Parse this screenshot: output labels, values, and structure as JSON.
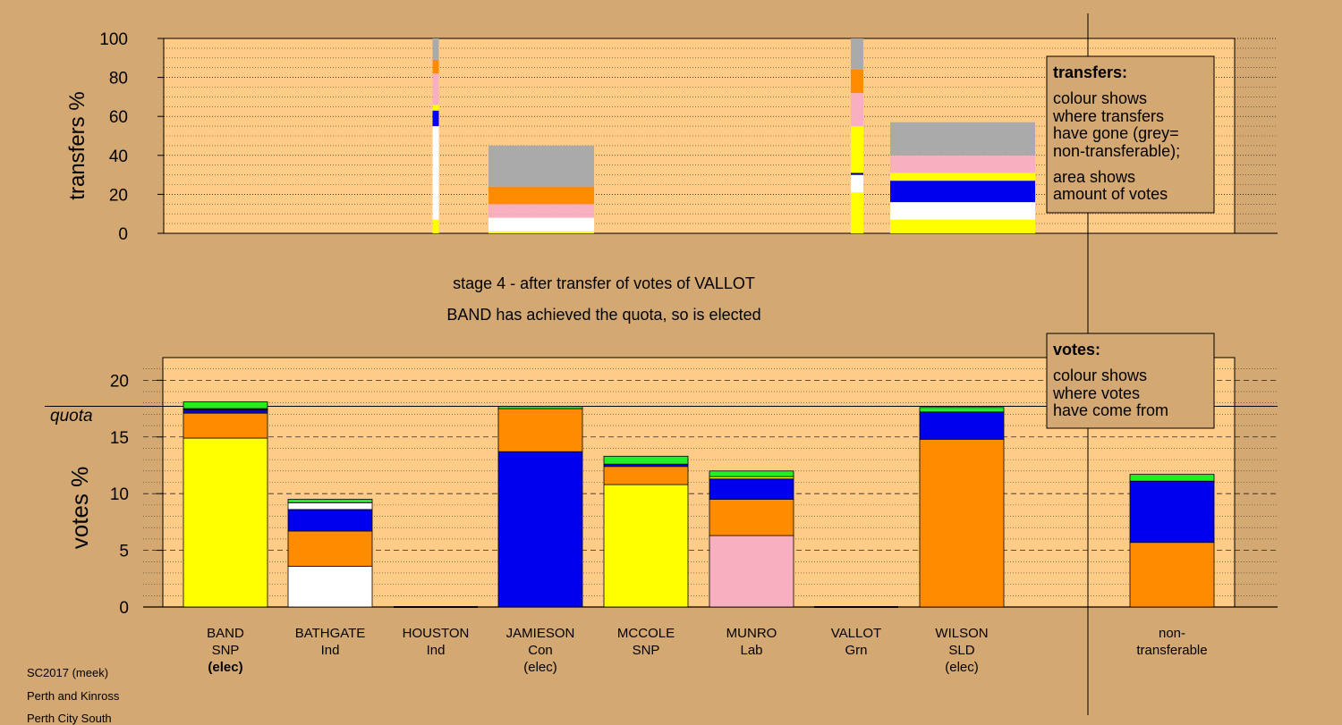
{
  "chart_data": {
    "type": "bar",
    "stage_title": "stage 4 - after transfer of votes of VALLOT",
    "stage_subtitle": "BAND has achieved the quota, so is elected",
    "colors": {
      "yellow": "#ffff00",
      "white": "#ffffff",
      "blue": "#0000ee",
      "orange": "#ff8c00",
      "pink": "#f8b0c0",
      "green": "#22ee22",
      "grey": "#aaaaaa",
      "navy": "#000080",
      "panel": "#ffcc88",
      "background": "#d4a872"
    },
    "transfers": {
      "ylabel": "transfers %",
      "ylim": [
        0,
        100
      ],
      "yticks": [
        0,
        20,
        40,
        60,
        80,
        100
      ],
      "bars": [
        {
          "candidate": "HOUSTON",
          "segments": [
            [
              "yellow",
              7
            ],
            [
              "white",
              48
            ],
            [
              "blue",
              8
            ],
            [
              "yellow",
              3
            ],
            [
              "pink",
              16
            ],
            [
              "orange",
              7
            ],
            [
              "grey",
              11
            ]
          ]
        },
        {
          "candidate": "JAMIESON",
          "segments": [
            [
              "yellow",
              1
            ],
            [
              "white",
              7
            ],
            [
              "pink",
              2
            ],
            [
              "pink",
              5
            ],
            [
              "orange",
              9
            ],
            [
              "grey",
              21
            ]
          ]
        },
        {
          "candidate": "VALLOT",
          "segments": [
            [
              "yellow",
              21
            ],
            [
              "white",
              9
            ],
            [
              "navy",
              1
            ],
            [
              "yellow",
              24
            ],
            [
              "pink",
              17
            ],
            [
              "orange",
              12
            ],
            [
              "grey",
              16
            ]
          ]
        },
        {
          "candidate": "WILSON",
          "segments": [
            [
              "yellow",
              7
            ],
            [
              "white",
              9
            ],
            [
              "blue",
              11
            ],
            [
              "yellow",
              4
            ],
            [
              "pink",
              9
            ],
            [
              "grey",
              17
            ]
          ]
        }
      ]
    },
    "transfers_legend": {
      "title": "transfers:",
      "lines1": [
        "colour shows",
        "where transfers",
        "have gone (grey=",
        "non-transferable);"
      ],
      "lines2": [
        "area shows",
        "amount of votes"
      ]
    },
    "votes": {
      "ylabel": "votes %",
      "ylim": [
        0,
        22
      ],
      "yticks": [
        0,
        5,
        10,
        15,
        20
      ],
      "quota": 17.7,
      "quota_label": "quota",
      "bars": [
        {
          "candidate": "BAND",
          "segments": [
            [
              "yellow",
              14.9
            ],
            [
              "orange",
              2.2
            ],
            [
              "blue",
              0.3
            ],
            [
              "navy",
              0.1
            ],
            [
              "green",
              0.6
            ]
          ]
        },
        {
          "candidate": "BATHGATE",
          "segments": [
            [
              "white",
              3.6
            ],
            [
              "orange",
              3.1
            ],
            [
              "blue",
              1.9
            ],
            [
              "white",
              0.6
            ],
            [
              "green",
              0.3
            ]
          ]
        },
        {
          "candidate": "HOUSTON",
          "segments": []
        },
        {
          "candidate": "JAMIESON",
          "segments": [
            [
              "blue",
              13.7
            ],
            [
              "orange",
              3.8
            ],
            [
              "green",
              0.2
            ]
          ]
        },
        {
          "candidate": "MCCOLE",
          "segments": [
            [
              "yellow",
              10.8
            ],
            [
              "orange",
              1.6
            ],
            [
              "blue",
              0.2
            ],
            [
              "green",
              0.7
            ]
          ]
        },
        {
          "candidate": "MUNRO",
          "segments": [
            [
              "pink",
              6.3
            ],
            [
              "orange",
              3.2
            ],
            [
              "blue",
              1.8
            ],
            [
              "yellow",
              0.2
            ],
            [
              "green",
              0.5
            ]
          ]
        },
        {
          "candidate": "VALLOT",
          "segments": []
        },
        {
          "candidate": "WILSON",
          "segments": [
            [
              "orange",
              14.8
            ],
            [
              "blue",
              2.4
            ],
            [
              "green",
              0.4
            ]
          ]
        },
        {
          "candidate": "non-transferable",
          "segments": [
            [
              "orange",
              5.7
            ],
            [
              "blue",
              5.4
            ],
            [
              "green",
              0.6
            ]
          ]
        }
      ]
    },
    "votes_legend": {
      "title": "votes:",
      "lines": [
        "colour shows",
        "where votes",
        "have come from"
      ]
    },
    "categories": [
      {
        "name": "BAND",
        "lines": [
          "BAND",
          "SNP",
          "(elec)"
        ],
        "bold_last": true
      },
      {
        "name": "BATHGATE",
        "lines": [
          "BATHGATE",
          "Ind"
        ]
      },
      {
        "name": "HOUSTON",
        "lines": [
          "HOUSTON",
          "Ind"
        ]
      },
      {
        "name": "JAMIESON",
        "lines": [
          "JAMIESON",
          "Con",
          "(elec)"
        ]
      },
      {
        "name": "MCCOLE",
        "lines": [
          "MCCOLE",
          "SNP"
        ]
      },
      {
        "name": "MUNRO",
        "lines": [
          "MUNRO",
          "Lab"
        ]
      },
      {
        "name": "VALLOT",
        "lines": [
          "VALLOT",
          "Grn"
        ]
      },
      {
        "name": "WILSON",
        "lines": [
          "WILSON",
          "SLD",
          "(elec)"
        ]
      },
      {
        "name": "non-transferable",
        "lines": [
          "non-",
          "transferable"
        ]
      }
    ]
  },
  "footer": {
    "line1": "SC2017 (meek)",
    "line2": "Perth and Kinross",
    "line3": "Perth City South"
  }
}
